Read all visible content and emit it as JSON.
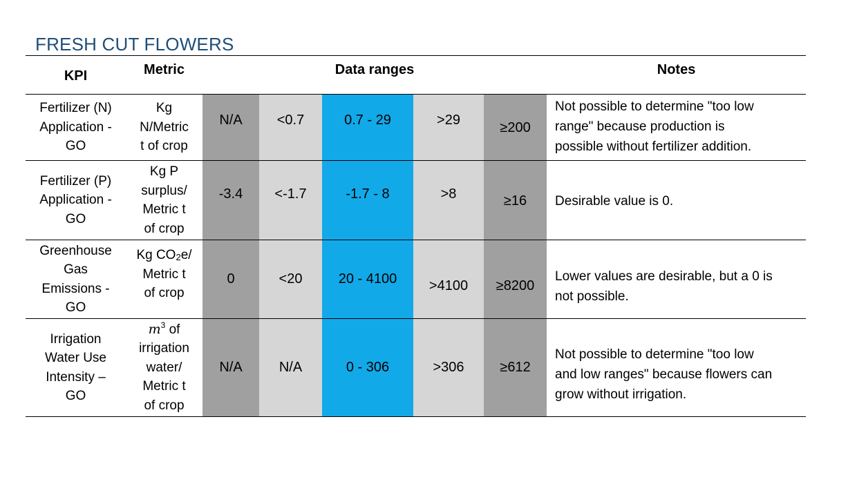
{
  "title": "FRESH CUT FLOWERS",
  "headers": {
    "kpi": "KPI",
    "metric": "Metric",
    "data_ranges": "Data ranges",
    "notes": "Notes"
  },
  "rows": [
    {
      "kpi": [
        "Fertilizer (N)",
        "Application -",
        "GO"
      ],
      "metric": [
        "Kg",
        "N/Metric",
        "t of crop"
      ],
      "ranges": [
        "N/A",
        "<0.7",
        "0.7 - 29",
        ">29",
        "≥200"
      ],
      "notes": [
        "Not possible to determine \"too low",
        "range\" because production is",
        "possible without fertilizer addition."
      ]
    },
    {
      "kpi": [
        "Fertilizer (P)",
        "Application -",
        "GO"
      ],
      "metric": [
        "Kg P",
        "surplus/",
        "Metric t",
        "of crop"
      ],
      "ranges": [
        "-3.4",
        "<-1.7",
        "-1.7 - 8",
        ">8",
        "≥16"
      ],
      "notes": [
        "Desirable value is 0."
      ]
    },
    {
      "kpi": [
        "Greenhouse",
        "Gas",
        "Emissions -",
        "GO"
      ],
      "metric_prefix": "Kg CO",
      "metric_sub": "2",
      "metric_suffix": "e/",
      "metric": [
        "Metric t",
        "of crop"
      ],
      "ranges": [
        "0",
        "<20",
        "20 - 4100",
        ">4100",
        "≥8200"
      ],
      "notes": [
        "Lower values are desirable, but a 0 is",
        "not possible."
      ]
    },
    {
      "kpi": [
        "Irrigation",
        "Water Use",
        "Intensity –",
        "GO"
      ],
      "metric_var": "m",
      "metric_sup": "3",
      "metric_after": " of",
      "metric": [
        "irrigation",
        "water/",
        "Metric t",
        "of crop"
      ],
      "ranges": [
        "N/A",
        "N/A",
        "0 - 306",
        ">306",
        "≥612"
      ],
      "notes": [
        "Not possible to determine \"too low",
        "and low ranges\" because flowers can",
        "grow without irrigation."
      ]
    }
  ],
  "colors": {
    "title": "#1f4e79",
    "range_dark": "#a0a0a0",
    "range_light": "#d6d6d6",
    "range_blue": "#12a9e8"
  }
}
